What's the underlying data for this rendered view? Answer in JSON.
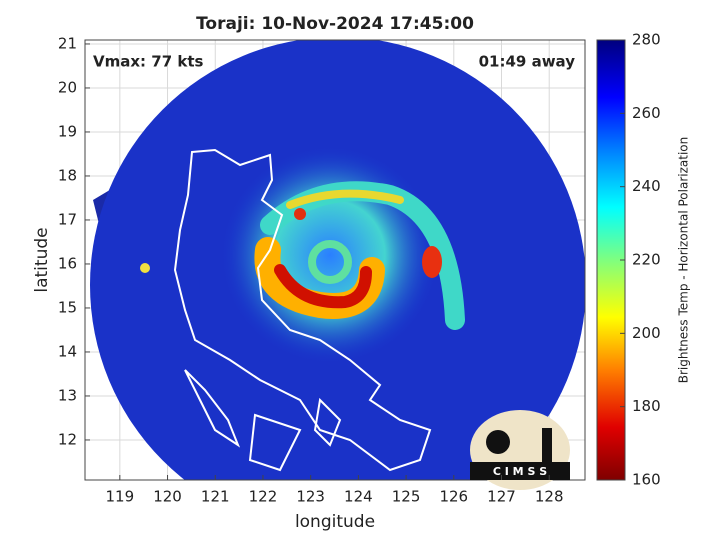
{
  "title": "Toraji: 10-Nov-2024 17:45:00",
  "annotations": {
    "vmax": "Vmax: 77 kts",
    "time_away": "01:49 away"
  },
  "x_axis": {
    "label": "longitude",
    "lim": [
      118.27,
      128.75
    ],
    "ticks": [
      119,
      120,
      121,
      122,
      123,
      124,
      125,
      126,
      127,
      128
    ]
  },
  "y_axis": {
    "label": "latitude",
    "lim": [
      11.09,
      21.09
    ],
    "ticks": [
      12,
      13,
      14,
      15,
      16,
      17,
      18,
      19,
      20,
      21
    ]
  },
  "colorbar": {
    "label": "Brightness Temp - Horizontal Polarization",
    "lim": [
      160,
      280
    ],
    "ticks": [
      160,
      180,
      200,
      220,
      240,
      260,
      280
    ]
  },
  "logo": {
    "text": "C I M S S"
  }
}
